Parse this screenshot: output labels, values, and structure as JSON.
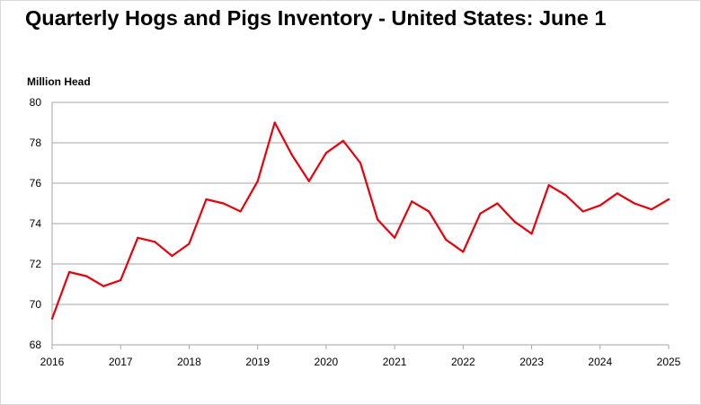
{
  "chart_data": {
    "type": "line",
    "title": "Quarterly Hogs and Pigs Inventory - United States: June 1",
    "ylabel": "Million Head",
    "xlabel": "",
    "ylim": [
      68,
      80
    ],
    "yticks": [
      "68",
      "70",
      "72",
      "74",
      "76",
      "78",
      "80"
    ],
    "xlim": [
      2016,
      2025
    ],
    "xticks": [
      "2016",
      "2017",
      "2018",
      "2019",
      "2020",
      "2021",
      "2022",
      "2023",
      "2024",
      "2025"
    ],
    "grid": "horizontal",
    "legend": "none",
    "series": [
      {
        "color": "#e8000b",
        "x": [
          2016.0,
          2016.25,
          2016.5,
          2016.75,
          2017.0,
          2017.25,
          2017.5,
          2017.75,
          2018.0,
          2018.25,
          2018.5,
          2018.75,
          2019.0,
          2019.25,
          2019.5,
          2019.75,
          2020.0,
          2020.25,
          2020.5,
          2020.75,
          2021.0,
          2021.25,
          2021.5,
          2021.75,
          2022.0,
          2022.25,
          2022.5,
          2022.75,
          2023.0,
          2023.25,
          2023.5,
          2023.75,
          2024.0,
          2024.25,
          2024.5,
          2024.75,
          2025.0
        ],
        "values": [
          69.3,
          71.6,
          71.4,
          70.9,
          71.2,
          73.3,
          73.1,
          72.4,
          73.0,
          75.2,
          75.0,
          74.6,
          76.1,
          79.0,
          77.4,
          76.1,
          77.5,
          78.1,
          77.0,
          74.2,
          73.3,
          75.1,
          74.6,
          73.2,
          72.6,
          74.5,
          75.0,
          74.1,
          73.5,
          75.9,
          75.4,
          74.6,
          74.9,
          75.5,
          75.0,
          74.7,
          75.2
        ]
      }
    ]
  }
}
